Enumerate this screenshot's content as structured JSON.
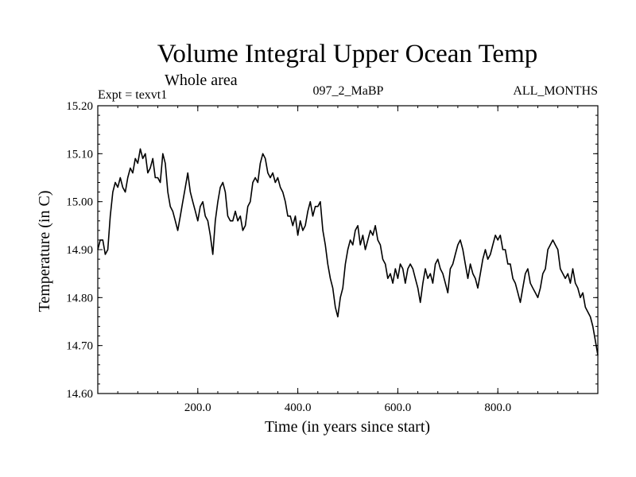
{
  "colors": {
    "background": "#ffffff",
    "line": "#000000",
    "axis": "#000000"
  },
  "chart_data": {
    "type": "line",
    "title": "Volume Integral Upper Ocean Temp",
    "subtitle": "Whole area",
    "experiment_label": "Expt = texvt1",
    "run_label": "097_2_MaBP",
    "period_label": "ALL_MONTHS",
    "xlabel": "Time (in years since start)",
    "ylabel": "Temperature (in C)",
    "xlim": [
      0,
      1000
    ],
    "ylim": [
      14.6,
      15.2
    ],
    "x_ticks": [
      {
        "value": 200,
        "label": "200.0"
      },
      {
        "value": 400,
        "label": "400.0"
      },
      {
        "value": 600,
        "label": "600.0"
      },
      {
        "value": 800,
        "label": "800.0"
      }
    ],
    "y_ticks": [
      {
        "value": 14.6,
        "label": "14.60"
      },
      {
        "value": 14.7,
        "label": "14.70"
      },
      {
        "value": 14.8,
        "label": "14.80"
      },
      {
        "value": 14.9,
        "label": "14.90"
      },
      {
        "value": 15.0,
        "label": "15.00"
      },
      {
        "value": 15.1,
        "label": "15.10"
      },
      {
        "value": 15.2,
        "label": "15.20"
      }
    ],
    "grid": false,
    "series": [
      {
        "name": "Volume integral upper ocean temperature",
        "x": [
          0,
          5,
          10,
          15,
          20,
          25,
          30,
          35,
          40,
          45,
          50,
          55,
          60,
          65,
          70,
          75,
          80,
          85,
          90,
          95,
          100,
          105,
          110,
          115,
          120,
          125,
          130,
          135,
          140,
          145,
          150,
          155,
          160,
          165,
          170,
          175,
          180,
          185,
          190,
          195,
          200,
          205,
          210,
          215,
          220,
          225,
          230,
          235,
          240,
          245,
          250,
          255,
          260,
          265,
          270,
          275,
          280,
          285,
          290,
          295,
          300,
          305,
          310,
          315,
          320,
          325,
          330,
          335,
          340,
          345,
          350,
          355,
          360,
          365,
          370,
          375,
          380,
          385,
          390,
          395,
          400,
          405,
          410,
          415,
          420,
          425,
          430,
          435,
          440,
          445,
          450,
          455,
          460,
          465,
          470,
          475,
          480,
          485,
          490,
          495,
          500,
          505,
          510,
          515,
          520,
          525,
          530,
          535,
          540,
          545,
          550,
          555,
          560,
          565,
          570,
          575,
          580,
          585,
          590,
          595,
          600,
          605,
          610,
          615,
          620,
          625,
          630,
          635,
          640,
          645,
          650,
          655,
          660,
          665,
          670,
          675,
          680,
          685,
          690,
          695,
          700,
          705,
          710,
          715,
          720,
          725,
          730,
          735,
          740,
          745,
          750,
          755,
          760,
          765,
          770,
          775,
          780,
          785,
          790,
          795,
          800,
          805,
          810,
          815,
          820,
          825,
          830,
          835,
          840,
          845,
          850,
          855,
          860,
          865,
          870,
          875,
          880,
          885,
          890,
          895,
          900,
          905,
          910,
          915,
          920,
          925,
          930,
          935,
          940,
          945,
          950,
          955,
          960,
          965,
          970,
          975,
          980,
          985,
          990,
          995,
          1000
        ],
        "values": [
          14.9,
          14.92,
          14.92,
          14.89,
          14.9,
          14.97,
          15.02,
          15.04,
          15.03,
          15.05,
          15.03,
          15.02,
          15.05,
          15.07,
          15.06,
          15.09,
          15.08,
          15.11,
          15.09,
          15.1,
          15.06,
          15.07,
          15.09,
          15.05,
          15.05,
          15.04,
          15.1,
          15.08,
          15.02,
          14.99,
          14.98,
          14.96,
          14.94,
          14.97,
          15.0,
          15.03,
          15.06,
          15.02,
          15.0,
          14.98,
          14.96,
          14.99,
          15.0,
          14.97,
          14.96,
          14.93,
          14.89,
          14.96,
          15.0,
          15.03,
          15.04,
          15.02,
          14.97,
          14.96,
          14.96,
          14.98,
          14.96,
          14.97,
          14.94,
          14.95,
          14.99,
          15.0,
          15.04,
          15.05,
          15.04,
          15.08,
          15.1,
          15.09,
          15.06,
          15.05,
          15.06,
          15.04,
          15.05,
          15.03,
          15.02,
          15.0,
          14.97,
          14.97,
          14.95,
          14.97,
          14.93,
          14.96,
          14.94,
          14.95,
          14.98,
          15.0,
          14.97,
          14.99,
          14.99,
          15.0,
          14.94,
          14.91,
          14.87,
          14.84,
          14.82,
          14.78,
          14.76,
          14.8,
          14.82,
          14.87,
          14.9,
          14.92,
          14.91,
          14.94,
          14.95,
          14.91,
          14.93,
          14.9,
          14.92,
          14.94,
          14.93,
          14.95,
          14.92,
          14.91,
          14.88,
          14.87,
          14.84,
          14.85,
          14.83,
          14.86,
          14.84,
          14.87,
          14.86,
          14.83,
          14.86,
          14.87,
          14.86,
          14.84,
          14.82,
          14.79,
          14.83,
          14.86,
          14.84,
          14.85,
          14.83,
          14.87,
          14.88,
          14.86,
          14.85,
          14.83,
          14.81,
          14.86,
          14.87,
          14.89,
          14.91,
          14.92,
          14.9,
          14.87,
          14.84,
          14.87,
          14.85,
          14.84,
          14.82,
          14.85,
          14.88,
          14.9,
          14.88,
          14.89,
          14.91,
          14.93,
          14.92,
          14.93,
          14.9,
          14.9,
          14.87,
          14.87,
          14.84,
          14.83,
          14.81,
          14.79,
          14.82,
          14.85,
          14.86,
          14.83,
          14.82,
          14.81,
          14.8,
          14.82,
          14.85,
          14.86,
          14.9,
          14.91,
          14.92,
          14.91,
          14.9,
          14.86,
          14.85,
          14.84,
          14.85,
          14.83,
          14.86,
          14.83,
          14.82,
          14.8,
          14.81,
          14.78,
          14.77,
          14.76,
          14.74,
          14.71,
          14.68
        ]
      }
    ]
  }
}
